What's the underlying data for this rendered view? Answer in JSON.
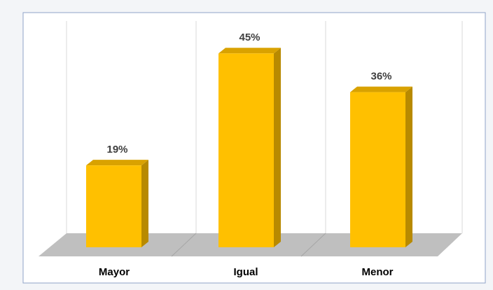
{
  "chart_data": {
    "type": "bar3d",
    "categories": [
      "Mayor",
      "Igual",
      "Menor"
    ],
    "values": [
      19,
      45,
      36
    ],
    "value_labels": [
      "19%",
      "45%",
      "36%"
    ],
    "color": "#ffc000"
  }
}
